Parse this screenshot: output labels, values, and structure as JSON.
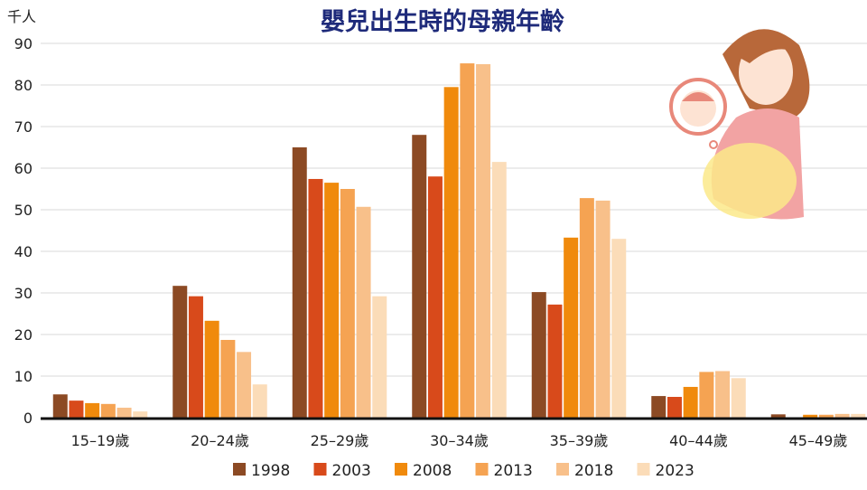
{
  "chart_data": {
    "type": "bar",
    "title": "嬰兒出生時的母親年齡",
    "ylabel": "千人",
    "ylim": [
      0,
      90
    ],
    "yticks": [
      0,
      10,
      20,
      30,
      40,
      50,
      60,
      70,
      80,
      90
    ],
    "grid": true,
    "legend_position": "bottom",
    "categories": [
      "15–19歲",
      "20–24歲",
      "25–29歲",
      "30–34歲",
      "35–39歲",
      "40–44歲",
      "45–49歲"
    ],
    "series": [
      {
        "name": "1998",
        "color": "#8c4a24",
        "values": [
          5.6,
          31.7,
          65.0,
          68.0,
          30.2,
          5.2,
          0.8
        ]
      },
      {
        "name": "2003",
        "color": "#d84a1b",
        "values": [
          4.1,
          29.2,
          57.4,
          58.0,
          27.2,
          5.0,
          0.1
        ]
      },
      {
        "name": "2008",
        "color": "#f08a0c",
        "values": [
          3.5,
          23.3,
          56.5,
          79.5,
          43.3,
          7.4,
          0.7
        ]
      },
      {
        "name": "2013",
        "color": "#f5a352",
        "values": [
          3.3,
          18.7,
          55.0,
          85.2,
          52.8,
          11.0,
          0.7
        ]
      },
      {
        "name": "2018",
        "color": "#f8c08a",
        "values": [
          2.4,
          15.8,
          50.7,
          85.0,
          52.2,
          11.2,
          0.9
        ]
      },
      {
        "name": "2023",
        "color": "#fbdcb8",
        "values": [
          1.5,
          8.0,
          29.2,
          61.5,
          43.0,
          9.5,
          0.9
        ]
      }
    ]
  }
}
